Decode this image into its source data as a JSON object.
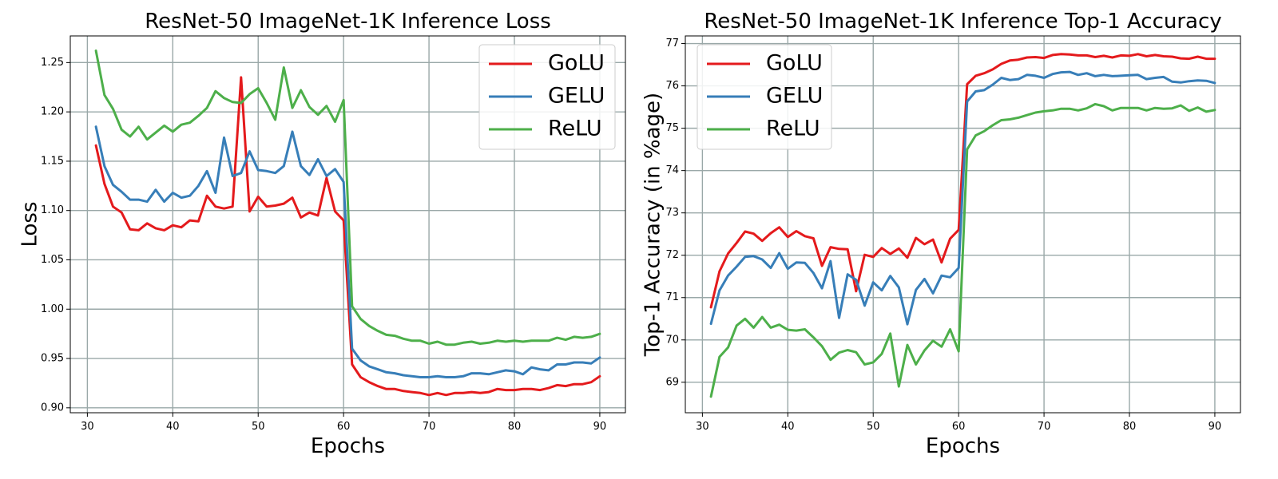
{
  "chart_data": [
    {
      "type": "line",
      "title": "ResNet-50 ImageNet-1K Inference Loss",
      "xlabel": "Epochs",
      "ylabel": "Loss",
      "xlim": [
        28,
        93
      ],
      "ylim": [
        0.895,
        1.277
      ],
      "xticks": [
        30,
        40,
        50,
        60,
        70,
        80,
        90
      ],
      "xtick_labels": [
        "30",
        "40",
        "50",
        "60",
        "70",
        "80",
        "90"
      ],
      "yticks": [
        0.9,
        0.95,
        1.0,
        1.05,
        1.1,
        1.15,
        1.2,
        1.25
      ],
      "ytick_labels": [
        "0.90",
        "0.95",
        "1.00",
        "1.05",
        "1.10",
        "1.15",
        "1.20",
        "1.25"
      ],
      "grid": true,
      "legend_position": "top-right",
      "x": [
        31,
        32,
        33,
        34,
        35,
        36,
        37,
        38,
        39,
        40,
        41,
        42,
        43,
        44,
        45,
        46,
        47,
        48,
        49,
        50,
        51,
        52,
        53,
        54,
        55,
        56,
        57,
        58,
        59,
        60,
        61,
        62,
        63,
        64,
        65,
        66,
        67,
        68,
        69,
        70,
        71,
        72,
        73,
        74,
        75,
        76,
        77,
        78,
        79,
        80,
        81,
        82,
        83,
        84,
        85,
        86,
        87,
        88,
        89,
        90
      ],
      "series": [
        {
          "name": "GoLU",
          "color": "#e41a1c",
          "values": [
            1.166,
            1.127,
            1.104,
            1.098,
            1.081,
            1.08,
            1.087,
            1.082,
            1.08,
            1.085,
            1.083,
            1.09,
            1.089,
            1.115,
            1.104,
            1.102,
            1.104,
            1.235,
            1.099,
            1.114,
            1.104,
            1.105,
            1.107,
            1.113,
            1.093,
            1.098,
            1.095,
            1.133,
            1.099,
            1.09,
            0.944,
            0.931,
            0.926,
            0.922,
            0.919,
            0.919,
            0.917,
            0.916,
            0.915,
            0.913,
            0.915,
            0.913,
            0.915,
            0.915,
            0.916,
            0.915,
            0.916,
            0.919,
            0.918,
            0.918,
            0.919,
            0.919,
            0.918,
            0.92,
            0.923,
            0.922,
            0.924,
            0.924,
            0.926,
            0.932
          ]
        },
        {
          "name": "GELU",
          "color": "#377eb8",
          "values": [
            1.185,
            1.145,
            1.126,
            1.119,
            1.111,
            1.111,
            1.109,
            1.121,
            1.109,
            1.118,
            1.113,
            1.115,
            1.125,
            1.14,
            1.118,
            1.174,
            1.135,
            1.138,
            1.16,
            1.141,
            1.14,
            1.138,
            1.145,
            1.18,
            1.145,
            1.136,
            1.152,
            1.135,
            1.142,
            1.129,
            0.96,
            0.948,
            0.942,
            0.939,
            0.936,
            0.935,
            0.933,
            0.932,
            0.931,
            0.931,
            0.932,
            0.931,
            0.931,
            0.932,
            0.935,
            0.935,
            0.934,
            0.936,
            0.938,
            0.937,
            0.934,
            0.941,
            0.939,
            0.938,
            0.944,
            0.944,
            0.946,
            0.946,
            0.945,
            0.951
          ]
        },
        {
          "name": "ReLU",
          "color": "#4daf4a",
          "values": [
            1.262,
            1.217,
            1.203,
            1.182,
            1.175,
            1.185,
            1.172,
            1.179,
            1.186,
            1.18,
            1.187,
            1.189,
            1.196,
            1.204,
            1.221,
            1.214,
            1.21,
            1.209,
            1.218,
            1.224,
            1.209,
            1.192,
            1.245,
            1.204,
            1.222,
            1.205,
            1.197,
            1.206,
            1.19,
            1.212,
            1.003,
            0.99,
            0.983,
            0.978,
            0.974,
            0.973,
            0.97,
            0.968,
            0.968,
            0.965,
            0.967,
            0.964,
            0.964,
            0.966,
            0.967,
            0.965,
            0.966,
            0.968,
            0.967,
            0.968,
            0.967,
            0.968,
            0.968,
            0.968,
            0.971,
            0.969,
            0.972,
            0.971,
            0.972,
            0.975
          ]
        }
      ]
    },
    {
      "type": "line",
      "title": "ResNet-50 ImageNet-1K Inference Top-1 Accuracy",
      "xlabel": "Epochs",
      "ylabel": "Top-1 Accuracy (in %age)",
      "xlim": [
        28,
        93
      ],
      "ylim": [
        68.28,
        77.18
      ],
      "xticks": [
        30,
        40,
        50,
        60,
        70,
        80,
        90
      ],
      "xtick_labels": [
        "30",
        "40",
        "50",
        "60",
        "70",
        "80",
        "90"
      ],
      "yticks": [
        69,
        70,
        71,
        72,
        73,
        74,
        75,
        76,
        77
      ],
      "ytick_labels": [
        "69",
        "70",
        "71",
        "72",
        "73",
        "74",
        "75",
        "76",
        "77"
      ],
      "grid": true,
      "legend_position": "top-left",
      "x": [
        31,
        32,
        33,
        34,
        35,
        36,
        37,
        38,
        39,
        40,
        41,
        42,
        43,
        44,
        45,
        46,
        47,
        48,
        49,
        50,
        51,
        52,
        53,
        54,
        55,
        56,
        57,
        58,
        59,
        60,
        61,
        62,
        63,
        64,
        65,
        66,
        67,
        68,
        69,
        70,
        71,
        72,
        73,
        74,
        75,
        76,
        77,
        78,
        79,
        80,
        81,
        82,
        83,
        84,
        85,
        86,
        87,
        88,
        89,
        90
      ],
      "series": [
        {
          "name": "GoLU",
          "color": "#e41a1c",
          "values": [
            70.77,
            71.62,
            72.04,
            72.29,
            72.56,
            72.51,
            72.34,
            72.52,
            72.66,
            72.43,
            72.57,
            72.45,
            72.4,
            71.75,
            72.19,
            72.15,
            72.14,
            71.15,
            72.01,
            71.96,
            72.17,
            72.03,
            72.16,
            71.94,
            72.41,
            72.26,
            72.37,
            71.83,
            72.39,
            72.6,
            76.04,
            76.24,
            76.3,
            76.39,
            76.52,
            76.6,
            76.62,
            76.67,
            76.68,
            76.66,
            76.73,
            76.75,
            76.74,
            76.72,
            76.72,
            76.68,
            76.71,
            76.67,
            76.72,
            76.71,
            76.75,
            76.7,
            76.73,
            76.7,
            76.69,
            76.65,
            76.64,
            76.69,
            76.64,
            76.64
          ]
        },
        {
          "name": "GELU",
          "color": "#377eb8",
          "values": [
            70.38,
            71.17,
            71.52,
            71.73,
            71.96,
            71.98,
            71.9,
            71.7,
            72.05,
            71.68,
            71.83,
            71.82,
            71.58,
            71.22,
            71.86,
            70.52,
            71.55,
            71.42,
            70.81,
            71.36,
            71.17,
            71.51,
            71.24,
            70.37,
            71.18,
            71.44,
            71.1,
            71.52,
            71.48,
            71.7,
            75.63,
            75.87,
            75.9,
            76.03,
            76.19,
            76.14,
            76.16,
            76.26,
            76.24,
            76.19,
            76.28,
            76.32,
            76.33,
            76.26,
            76.3,
            76.23,
            76.26,
            76.23,
            76.24,
            76.25,
            76.26,
            76.16,
            76.19,
            76.21,
            76.1,
            76.08,
            76.11,
            76.13,
            76.12,
            76.07
          ]
        },
        {
          "name": "ReLU",
          "color": "#4daf4a",
          "values": [
            68.66,
            69.6,
            69.82,
            70.34,
            70.5,
            70.29,
            70.54,
            70.29,
            70.36,
            70.24,
            70.22,
            70.25,
            70.06,
            69.85,
            69.53,
            69.7,
            69.76,
            69.71,
            69.42,
            69.47,
            69.67,
            70.15,
            68.9,
            69.88,
            69.42,
            69.75,
            69.98,
            69.84,
            70.25,
            69.73,
            74.5,
            74.83,
            74.93,
            75.07,
            75.19,
            75.21,
            75.25,
            75.31,
            75.37,
            75.4,
            75.42,
            75.46,
            75.46,
            75.42,
            75.47,
            75.57,
            75.52,
            75.42,
            75.48,
            75.48,
            75.48,
            75.42,
            75.48,
            75.46,
            75.47,
            75.54,
            75.41,
            75.49,
            75.39,
            75.43
          ]
        }
      ]
    }
  ]
}
